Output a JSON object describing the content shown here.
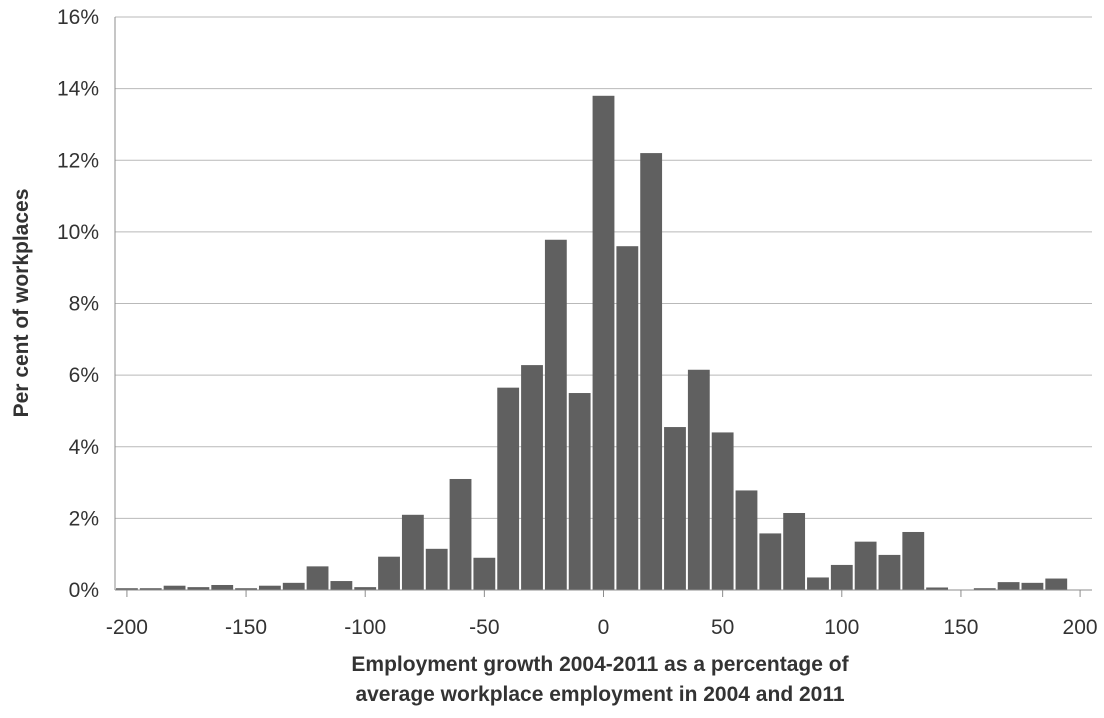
{
  "chart_data": {
    "type": "bar",
    "title": "",
    "xlabel_lines": [
      "Employment growth 2004-2011 as a percentage of",
      "average workplace employment in 2004 and 2011"
    ],
    "ylabel": "Per cent of workplaces",
    "xlim": [
      -205,
      205
    ],
    "ylim": [
      0,
      16
    ],
    "x_ticks": [
      -200,
      -150,
      -100,
      -50,
      0,
      50,
      100,
      150,
      200
    ],
    "x_tick_labels": [
      "-200",
      "-150",
      "-100",
      "-50",
      "0",
      "50",
      "100",
      "150",
      "200"
    ],
    "y_ticks": [
      0,
      2,
      4,
      6,
      8,
      10,
      12,
      14,
      16
    ],
    "y_tick_labels": [
      "0%",
      "2%",
      "4%",
      "6%",
      "8%",
      "10%",
      "12%",
      "14%",
      "16%"
    ],
    "grid": "horizontal",
    "legend": "none",
    "bar_color": "#606060",
    "x": [
      -200,
      -190,
      -180,
      -170,
      -160,
      -150,
      -140,
      -130,
      -120,
      -110,
      -100,
      -90,
      -80,
      -70,
      -60,
      -50,
      -40,
      -30,
      -20,
      -10,
      0,
      10,
      20,
      30,
      40,
      50,
      60,
      70,
      80,
      90,
      100,
      110,
      120,
      130,
      140,
      150,
      160,
      170,
      180,
      190
    ],
    "values": [
      0.05,
      0.05,
      0.12,
      0.08,
      0.14,
      0.05,
      0.12,
      0.2,
      0.66,
      0.25,
      0.08,
      0.93,
      2.1,
      1.15,
      3.1,
      0.9,
      5.65,
      6.28,
      9.78,
      5.5,
      13.8,
      9.6,
      12.2,
      4.55,
      6.15,
      4.4,
      2.78,
      1.58,
      2.15,
      0.35,
      0.7,
      1.35,
      0.98,
      1.62,
      0.07,
      0.0,
      0.05,
      0.22,
      0.2,
      0.32
    ]
  }
}
